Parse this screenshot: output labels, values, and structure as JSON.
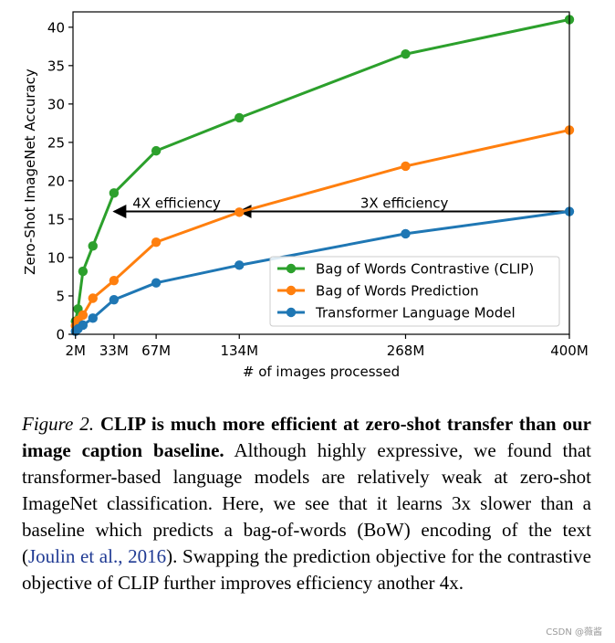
{
  "chart_data": {
    "type": "line",
    "xlabel": "# of images processed",
    "ylabel": "Zero-Shot ImageNet Accuracy",
    "xlim": [
      0,
      400
    ],
    "ylim": [
      0,
      42
    ],
    "x_ticks": [
      {
        "value": 2,
        "label": "2M"
      },
      {
        "value": 33,
        "label": "33M"
      },
      {
        "value": 67,
        "label": "67M"
      },
      {
        "value": 134,
        "label": "134M"
      },
      {
        "value": 268,
        "label": "268M"
      },
      {
        "value": 400,
        "label": "400M"
      }
    ],
    "y_ticks": [
      0,
      5,
      10,
      15,
      20,
      25,
      30,
      35,
      40
    ],
    "series": [
      {
        "name": "Bag of Words Contrastive (CLIP)",
        "color": "#2ca02c",
        "x": [
          2,
          4,
          8,
          16,
          33,
          67,
          134,
          268,
          400
        ],
        "y": [
          1.7,
          3.3,
          8.2,
          11.5,
          18.4,
          23.9,
          28.2,
          36.5,
          41.0
        ]
      },
      {
        "name": "Bag of Words Prediction",
        "color": "#ff7f0e",
        "x": [
          2,
          4,
          8,
          16,
          33,
          67,
          134,
          268,
          400
        ],
        "y": [
          1.1,
          1.8,
          2.5,
          4.7,
          7.0,
          12.0,
          15.9,
          21.9,
          26.6
        ]
      },
      {
        "name": "Transformer Language Model",
        "color": "#1f77b4",
        "x": [
          2,
          4,
          8,
          16,
          33,
          67,
          134,
          268,
          400
        ],
        "y": [
          0.4,
          0.7,
          1.2,
          2.1,
          4.5,
          6.7,
          9.0,
          13.1,
          16.0
        ]
      }
    ],
    "annotations": [
      {
        "text": "4X efficiency",
        "arrow_from_x": 134,
        "arrow_to_x": 33,
        "y": 16.0
      },
      {
        "text": "3X efficiency",
        "arrow_from_x": 400,
        "arrow_to_x": 134,
        "y": 16.0
      }
    ],
    "legend_position": "lower-right"
  },
  "caption": {
    "figure_label": "Figure 2.",
    "bold_text": "CLIP is much more efficient at zero-shot transfer than our image caption baseline.",
    "body_before_cite": "Although highly expressive, we found that transformer-based language models are relatively weak at zero-shot ImageNet classification. Here, we see that it learns 3x slower than a baseline which predicts a bag-of-words (BoW) encoding of the text (",
    "cite_authors": "Joulin et al.",
    "cite_sep": ", ",
    "cite_year": "2016",
    "body_after_cite": "). Swapping the prediction objective for the contrastive objective of CLIP further improves efficiency another 4x."
  },
  "watermark": "CSDN @薇酱"
}
